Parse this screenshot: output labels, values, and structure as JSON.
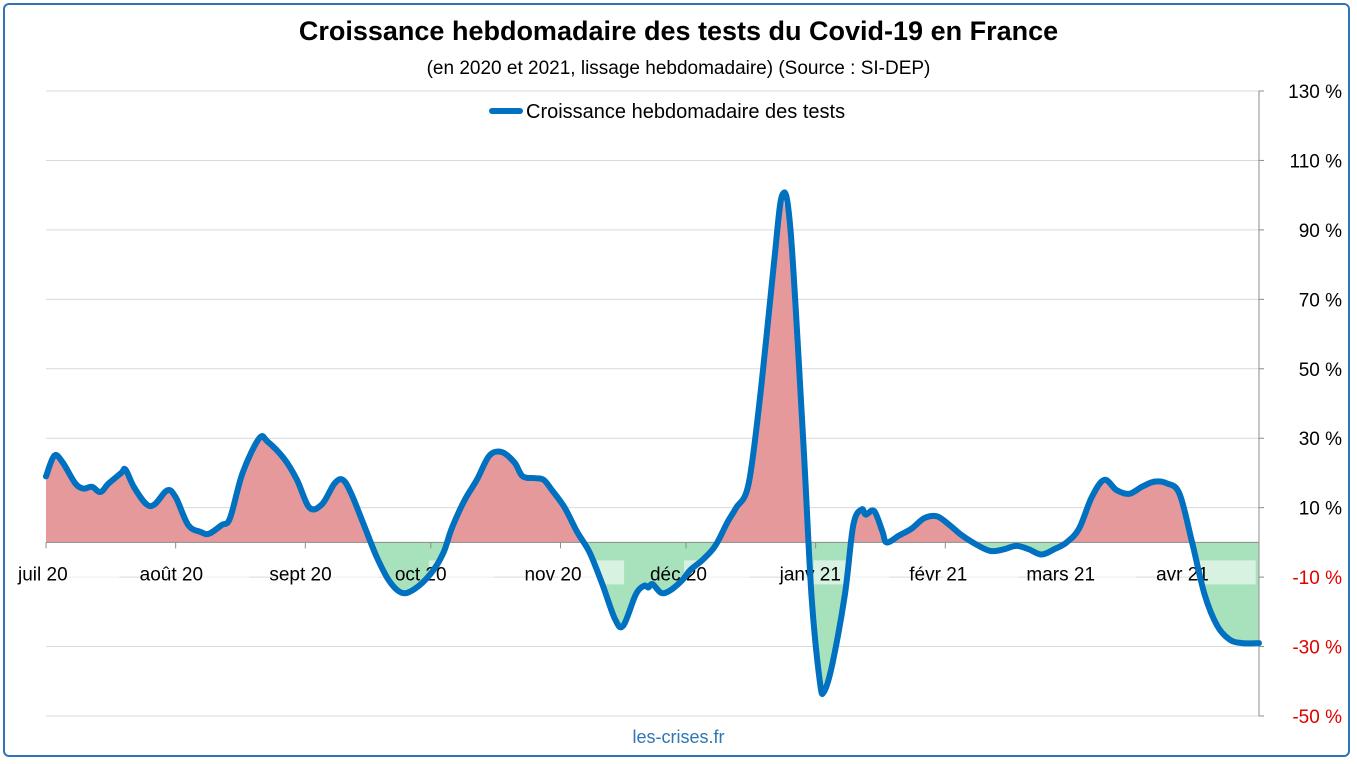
{
  "chart_data": {
    "type": "area",
    "title": "Croissance hebdomadaire des tests du Covid-19 en France",
    "subtitle": "(en 2020 et 2021, lissage hebdomadaire) (Source : SI-DEP)",
    "source": "les-crises.fr",
    "ylim": [
      -50,
      130
    ],
    "y_ticks": [
      130,
      110,
      90,
      70,
      50,
      30,
      10,
      -10,
      -30,
      -50
    ],
    "y_tick_labels": [
      "130 %",
      "110 %",
      "90 %",
      "70 %",
      "50 %",
      "30 %",
      "10 %",
      "-10 %",
      "-30 %",
      "-50 %"
    ],
    "y_axis_position": "right",
    "x_tick_labels": [
      "juil 20",
      "août 20",
      "sept 20",
      "oct 20",
      "nov 20",
      "déc 20",
      "janv 21",
      "févr 21",
      "mars 21",
      "avr 21"
    ],
    "x_tick_dates": [
      "2020-07-01",
      "2020-08-01",
      "2020-09-01",
      "2020-10-01",
      "2020-11-01",
      "2020-12-01",
      "2021-01-01",
      "2021-02-01",
      "2021-03-01",
      "2021-04-01"
    ],
    "x_range": [
      "2020-07-01",
      "2021-04-17"
    ],
    "grid": true,
    "legend_position": "top-center",
    "series": [
      {
        "name": "Croissance hebdomadaire des tests",
        "color": "#0070c0",
        "positive_fill": "#e6999b",
        "negative_fill": "#a8e2bd",
        "points": [
          [
            "2020-07-01",
            19
          ],
          [
            "2020-07-03",
            25
          ],
          [
            "2020-07-05",
            23
          ],
          [
            "2020-07-08",
            17
          ],
          [
            "2020-07-10",
            15.5
          ],
          [
            "2020-07-12",
            16
          ],
          [
            "2020-07-14",
            14.5
          ],
          [
            "2020-07-16",
            17
          ],
          [
            "2020-07-19",
            20
          ],
          [
            "2020-07-20",
            21
          ],
          [
            "2020-07-22",
            16
          ],
          [
            "2020-07-25",
            11
          ],
          [
            "2020-07-27",
            11
          ],
          [
            "2020-07-30",
            15
          ],
          [
            "2020-08-01",
            13
          ],
          [
            "2020-08-04",
            5
          ],
          [
            "2020-08-07",
            3
          ],
          [
            "2020-08-09",
            2.5
          ],
          [
            "2020-08-12",
            5
          ],
          [
            "2020-08-14",
            7
          ],
          [
            "2020-08-17",
            20
          ],
          [
            "2020-08-21",
            30
          ],
          [
            "2020-08-23",
            29
          ],
          [
            "2020-08-27",
            24
          ],
          [
            "2020-08-30",
            18
          ],
          [
            "2020-09-02",
            10
          ],
          [
            "2020-09-05",
            11
          ],
          [
            "2020-09-08",
            17
          ],
          [
            "2020-09-10",
            18
          ],
          [
            "2020-09-12",
            14
          ],
          [
            "2020-09-15",
            5
          ],
          [
            "2020-09-18",
            -4
          ],
          [
            "2020-09-21",
            -11
          ],
          [
            "2020-09-24",
            -14.5
          ],
          [
            "2020-09-27",
            -13.5
          ],
          [
            "2020-10-01",
            -9
          ],
          [
            "2020-10-04",
            -3
          ],
          [
            "2020-10-06",
            4
          ],
          [
            "2020-10-09",
            12
          ],
          [
            "2020-10-12",
            18
          ],
          [
            "2020-10-15",
            25
          ],
          [
            "2020-10-18",
            26
          ],
          [
            "2020-10-21",
            23
          ],
          [
            "2020-10-23",
            19
          ],
          [
            "2020-10-26",
            18.5
          ],
          [
            "2020-10-28",
            18
          ],
          [
            "2020-10-30",
            15
          ],
          [
            "2020-11-02",
            10
          ],
          [
            "2020-11-05",
            3
          ],
          [
            "2020-11-08",
            -3
          ],
          [
            "2020-11-11",
            -12
          ],
          [
            "2020-11-14",
            -22
          ],
          [
            "2020-11-16",
            -24
          ],
          [
            "2020-11-19",
            -15
          ],
          [
            "2020-11-21",
            -12.5
          ],
          [
            "2020-11-22",
            -13
          ],
          [
            "2020-11-23",
            -12
          ],
          [
            "2020-11-25",
            -14.5
          ],
          [
            "2020-11-27",
            -14
          ],
          [
            "2020-11-30",
            -11
          ],
          [
            "2020-12-02",
            -8
          ],
          [
            "2020-12-05",
            -5
          ],
          [
            "2020-12-08",
            -1
          ],
          [
            "2020-12-11",
            6
          ],
          [
            "2020-12-13",
            10
          ],
          [
            "2020-12-16",
            17
          ],
          [
            "2020-12-19",
            45
          ],
          [
            "2020-12-22",
            80
          ],
          [
            "2020-12-24",
            100
          ],
          [
            "2020-12-26",
            90
          ],
          [
            "2020-12-29",
            30
          ],
          [
            "2020-12-31",
            -15
          ],
          [
            "2021-01-02",
            -40
          ],
          [
            "2021-01-03",
            -43
          ],
          [
            "2021-01-05",
            -35
          ],
          [
            "2021-01-08",
            -15
          ],
          [
            "2021-01-10",
            5
          ],
          [
            "2021-01-12",
            9.5
          ],
          [
            "2021-01-13",
            8
          ],
          [
            "2021-01-15",
            9
          ],
          [
            "2021-01-17",
            3
          ],
          [
            "2021-01-18",
            0
          ],
          [
            "2021-01-21",
            2
          ],
          [
            "2021-01-24",
            4
          ],
          [
            "2021-01-27",
            7
          ],
          [
            "2021-01-30",
            7.5
          ],
          [
            "2021-02-02",
            5
          ],
          [
            "2021-02-05",
            2
          ],
          [
            "2021-02-09",
            -1
          ],
          [
            "2021-02-12",
            -2.5
          ],
          [
            "2021-02-15",
            -2
          ],
          [
            "2021-02-18",
            -1
          ],
          [
            "2021-02-21",
            -2
          ],
          [
            "2021-02-24",
            -3.5
          ],
          [
            "2021-02-27",
            -2
          ],
          [
            "2021-03-02",
            0
          ],
          [
            "2021-03-05",
            4
          ],
          [
            "2021-03-08",
            13
          ],
          [
            "2021-03-11",
            18
          ],
          [
            "2021-03-14",
            15
          ],
          [
            "2021-03-17",
            14
          ],
          [
            "2021-03-20",
            16
          ],
          [
            "2021-03-23",
            17.5
          ],
          [
            "2021-03-26",
            17
          ],
          [
            "2021-03-29",
            14
          ],
          [
            "2021-04-01",
            0
          ],
          [
            "2021-04-04",
            -15
          ],
          [
            "2021-04-07",
            -24
          ],
          [
            "2021-04-10",
            -28
          ],
          [
            "2021-04-13",
            -29
          ],
          [
            "2021-04-17",
            -29
          ]
        ]
      }
    ]
  }
}
